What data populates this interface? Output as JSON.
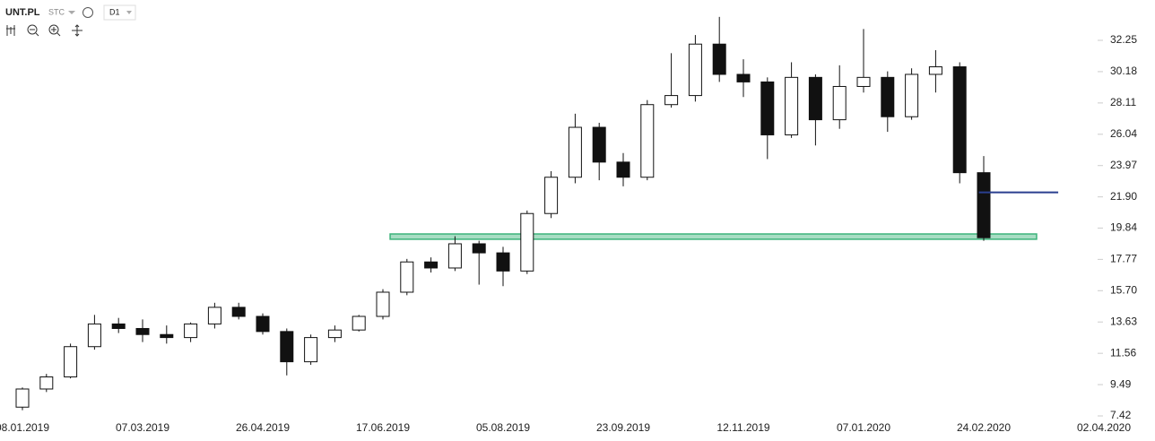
{
  "chart_data": {
    "type": "candlestick",
    "symbol": "UNT.PL",
    "market": "STC",
    "interval": "D1",
    "categories": [
      "08.01.2019",
      null,
      null,
      null,
      null,
      "07.03.2019",
      null,
      null,
      null,
      null,
      "26.04.2019",
      null,
      null,
      null,
      null,
      "17.06.2019",
      null,
      null,
      null,
      null,
      "05.08.2019",
      null,
      null,
      null,
      null,
      "23.09.2019",
      null,
      null,
      null,
      null,
      "12.11.2019",
      null,
      null,
      null,
      null,
      "07.01.2020",
      null,
      null,
      null,
      null,
      "24.02.2020",
      null,
      null,
      null,
      null,
      "02.04.2020"
    ],
    "series": [
      {
        "name": "open",
        "values": [
          8.0,
          9.2,
          10.0,
          12.0,
          13.5,
          13.2,
          12.8,
          12.6,
          13.5,
          14.6,
          14.0,
          13.0,
          11.0,
          12.6,
          13.1,
          14.0,
          15.6,
          17.6,
          17.2,
          18.8,
          18.2,
          17.0,
          20.8,
          23.2,
          26.5,
          24.2,
          23.2,
          28.0,
          28.6,
          32.0,
          30.0,
          29.5,
          26.0,
          29.8,
          27.0,
          29.2,
          29.8,
          27.2,
          30.0,
          30.5,
          23.5,
          null,
          null,
          null,
          null,
          null
        ]
      },
      {
        "name": "high",
        "values": [
          9.3,
          10.2,
          12.2,
          14.1,
          13.9,
          13.8,
          13.4,
          13.6,
          14.9,
          14.9,
          14.2,
          13.2,
          12.8,
          13.4,
          14.1,
          15.8,
          17.8,
          17.9,
          19.3,
          19.0,
          18.6,
          21.0,
          23.6,
          27.4,
          26.8,
          24.8,
          28.3,
          31.4,
          32.6,
          33.8,
          31.0,
          29.8,
          30.8,
          30.0,
          30.6,
          33.0,
          30.2,
          30.4,
          31.6,
          30.8,
          24.6,
          null,
          null,
          null,
          null,
          null
        ]
      },
      {
        "name": "low",
        "values": [
          7.8,
          9.0,
          9.9,
          11.8,
          12.9,
          12.3,
          12.2,
          12.3,
          13.2,
          13.8,
          12.8,
          10.1,
          10.8,
          12.3,
          13.0,
          13.8,
          15.4,
          16.9,
          17.0,
          16.1,
          16.0,
          16.8,
          20.5,
          22.8,
          23.0,
          22.6,
          23.0,
          27.8,
          28.2,
          29.5,
          28.5,
          24.4,
          25.8,
          25.3,
          26.4,
          28.8,
          26.2,
          27.0,
          28.8,
          22.8,
          19.0,
          null,
          null,
          null,
          null,
          null
        ]
      },
      {
        "name": "close",
        "values": [
          9.2,
          10.0,
          12.0,
          13.5,
          13.2,
          12.8,
          12.6,
          13.5,
          14.6,
          14.0,
          13.0,
          11.0,
          12.6,
          13.1,
          14.0,
          15.6,
          17.6,
          17.2,
          18.8,
          18.2,
          17.0,
          20.8,
          23.2,
          26.5,
          24.2,
          23.2,
          28.0,
          28.6,
          32.0,
          30.0,
          29.5,
          26.0,
          29.8,
          27.0,
          29.2,
          29.8,
          27.2,
          30.0,
          30.5,
          23.5,
          19.2,
          null,
          null,
          null,
          null,
          null
        ]
      }
    ],
    "up_color": "#ffffff",
    "down_color": "#111111",
    "ylim": [
      6.9,
      34.3
    ],
    "yticks": [
      32.25,
      30.18,
      28.11,
      26.04,
      23.97,
      {
        "value": 21.9,
        "label": "21.90"
      },
      19.84,
      17.77,
      {
        "value": 15.7,
        "label": "15.70"
      },
      13.63,
      11.56,
      9.49,
      7.42
    ],
    "zone": {
      "low": 19.1,
      "high": 19.45,
      "start": 15.3,
      "end": 42.2,
      "color": "#3cb37a"
    },
    "level": {
      "value": 22.2,
      "start": 39.8,
      "end": 43.1,
      "color": "#2a3f8f"
    }
  }
}
